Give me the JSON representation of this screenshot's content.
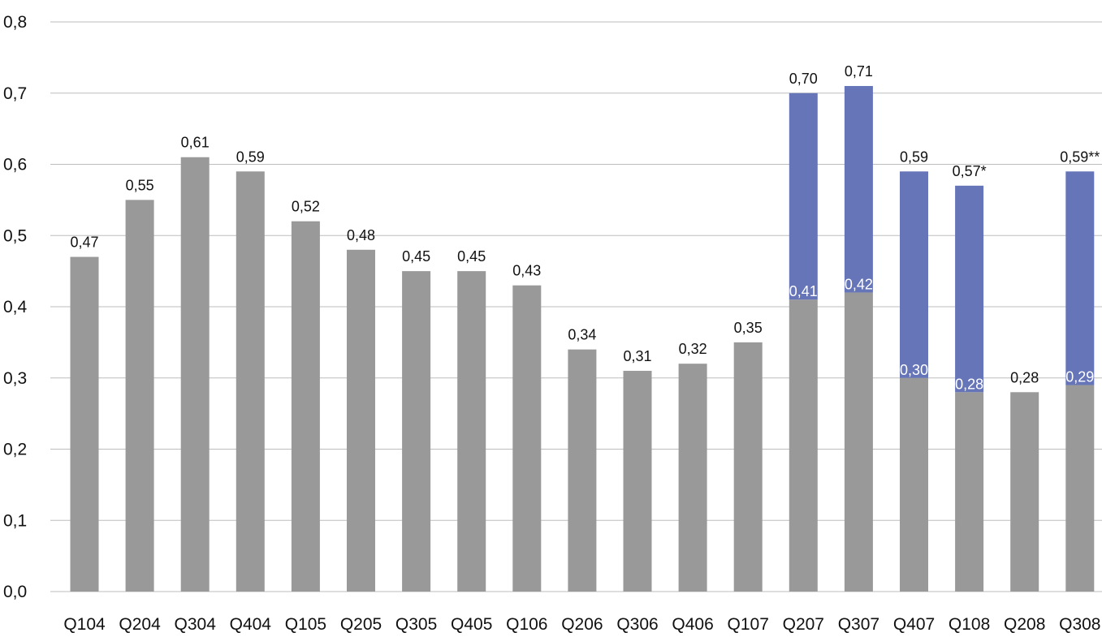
{
  "chart_data": {
    "type": "bar",
    "stacked": true,
    "categories": [
      "Q104",
      "Q204",
      "Q304",
      "Q404",
      "Q105",
      "Q205",
      "Q305",
      "Q405",
      "Q106",
      "Q206",
      "Q306",
      "Q406",
      "Q107",
      "Q207",
      "Q307",
      "Q407",
      "Q108",
      "Q208",
      "Q308"
    ],
    "series": [
      {
        "color": "#999999",
        "values": [
          0.47,
          0.55,
          0.61,
          0.59,
          0.52,
          0.48,
          0.45,
          0.45,
          0.43,
          0.34,
          0.31,
          0.32,
          0.35,
          0.41,
          0.42,
          0.3,
          0.28,
          0.28,
          0.29
        ],
        "labels": [
          "0,47",
          "0,55",
          "0,61",
          "0,59",
          "0,52",
          "0,48",
          "0,45",
          "0,45",
          "0,43",
          "0,34",
          "0,31",
          "0,32",
          "0,35",
          "0,41",
          "0,42",
          "0,30",
          "0,28",
          "0,28",
          "0,29"
        ]
      },
      {
        "color": "#6674B8",
        "values": [
          null,
          null,
          null,
          null,
          null,
          null,
          null,
          null,
          null,
          null,
          null,
          null,
          null,
          0.29,
          0.29,
          0.29,
          0.29,
          null,
          0.3
        ],
        "labels": [
          null,
          null,
          null,
          null,
          null,
          null,
          null,
          null,
          null,
          null,
          null,
          null,
          null,
          "0,70",
          "0,71",
          "0,59",
          "0,57*",
          null,
          "0,59**"
        ]
      }
    ],
    "ylim": [
      0,
      0.8
    ],
    "yticks": [
      "0,0",
      "0,1",
      "0,2",
      "0,3",
      "0,4",
      "0,5",
      "0,6",
      "0,7",
      "0,8"
    ],
    "grid": true,
    "legend": "none",
    "title": "",
    "xlabel": "",
    "ylabel": ""
  }
}
